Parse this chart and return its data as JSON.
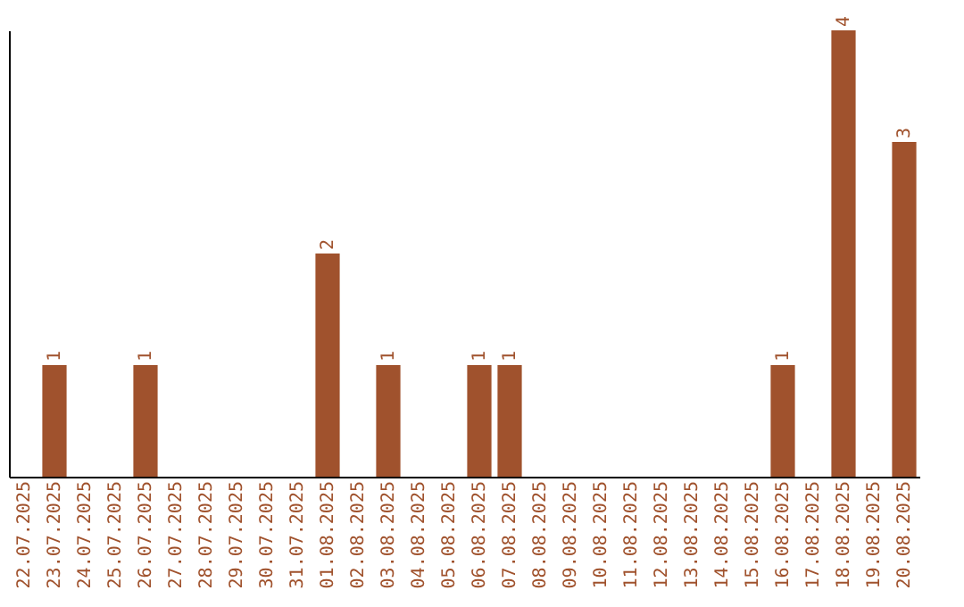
{
  "chart_data": {
    "type": "bar",
    "categories": [
      "22.07.2025",
      "23.07.2025",
      "24.07.2025",
      "25.07.2025",
      "26.07.2025",
      "27.07.2025",
      "28.07.2025",
      "29.07.2025",
      "30.07.2025",
      "31.07.2025",
      "01.08.2025",
      "02.08.2025",
      "03.08.2025",
      "04.08.2025",
      "05.08.2025",
      "06.08.2025",
      "07.08.2025",
      "08.08.2025",
      "09.08.2025",
      "10.08.2025",
      "11.08.2025",
      "12.08.2025",
      "13.08.2025",
      "14.08.2025",
      "15.08.2025",
      "16.08.2025",
      "17.08.2025",
      "18.08.2025",
      "19.08.2025",
      "20.08.2025"
    ],
    "values": [
      null,
      1,
      null,
      null,
      1,
      null,
      null,
      null,
      null,
      null,
      2,
      null,
      1,
      null,
      null,
      1,
      1,
      null,
      null,
      null,
      null,
      null,
      null,
      null,
      null,
      1,
      null,
      4,
      null,
      3
    ],
    "color": "#a0522d",
    "data_labels": true,
    "tick_labels": "x",
    "grid": false
  }
}
